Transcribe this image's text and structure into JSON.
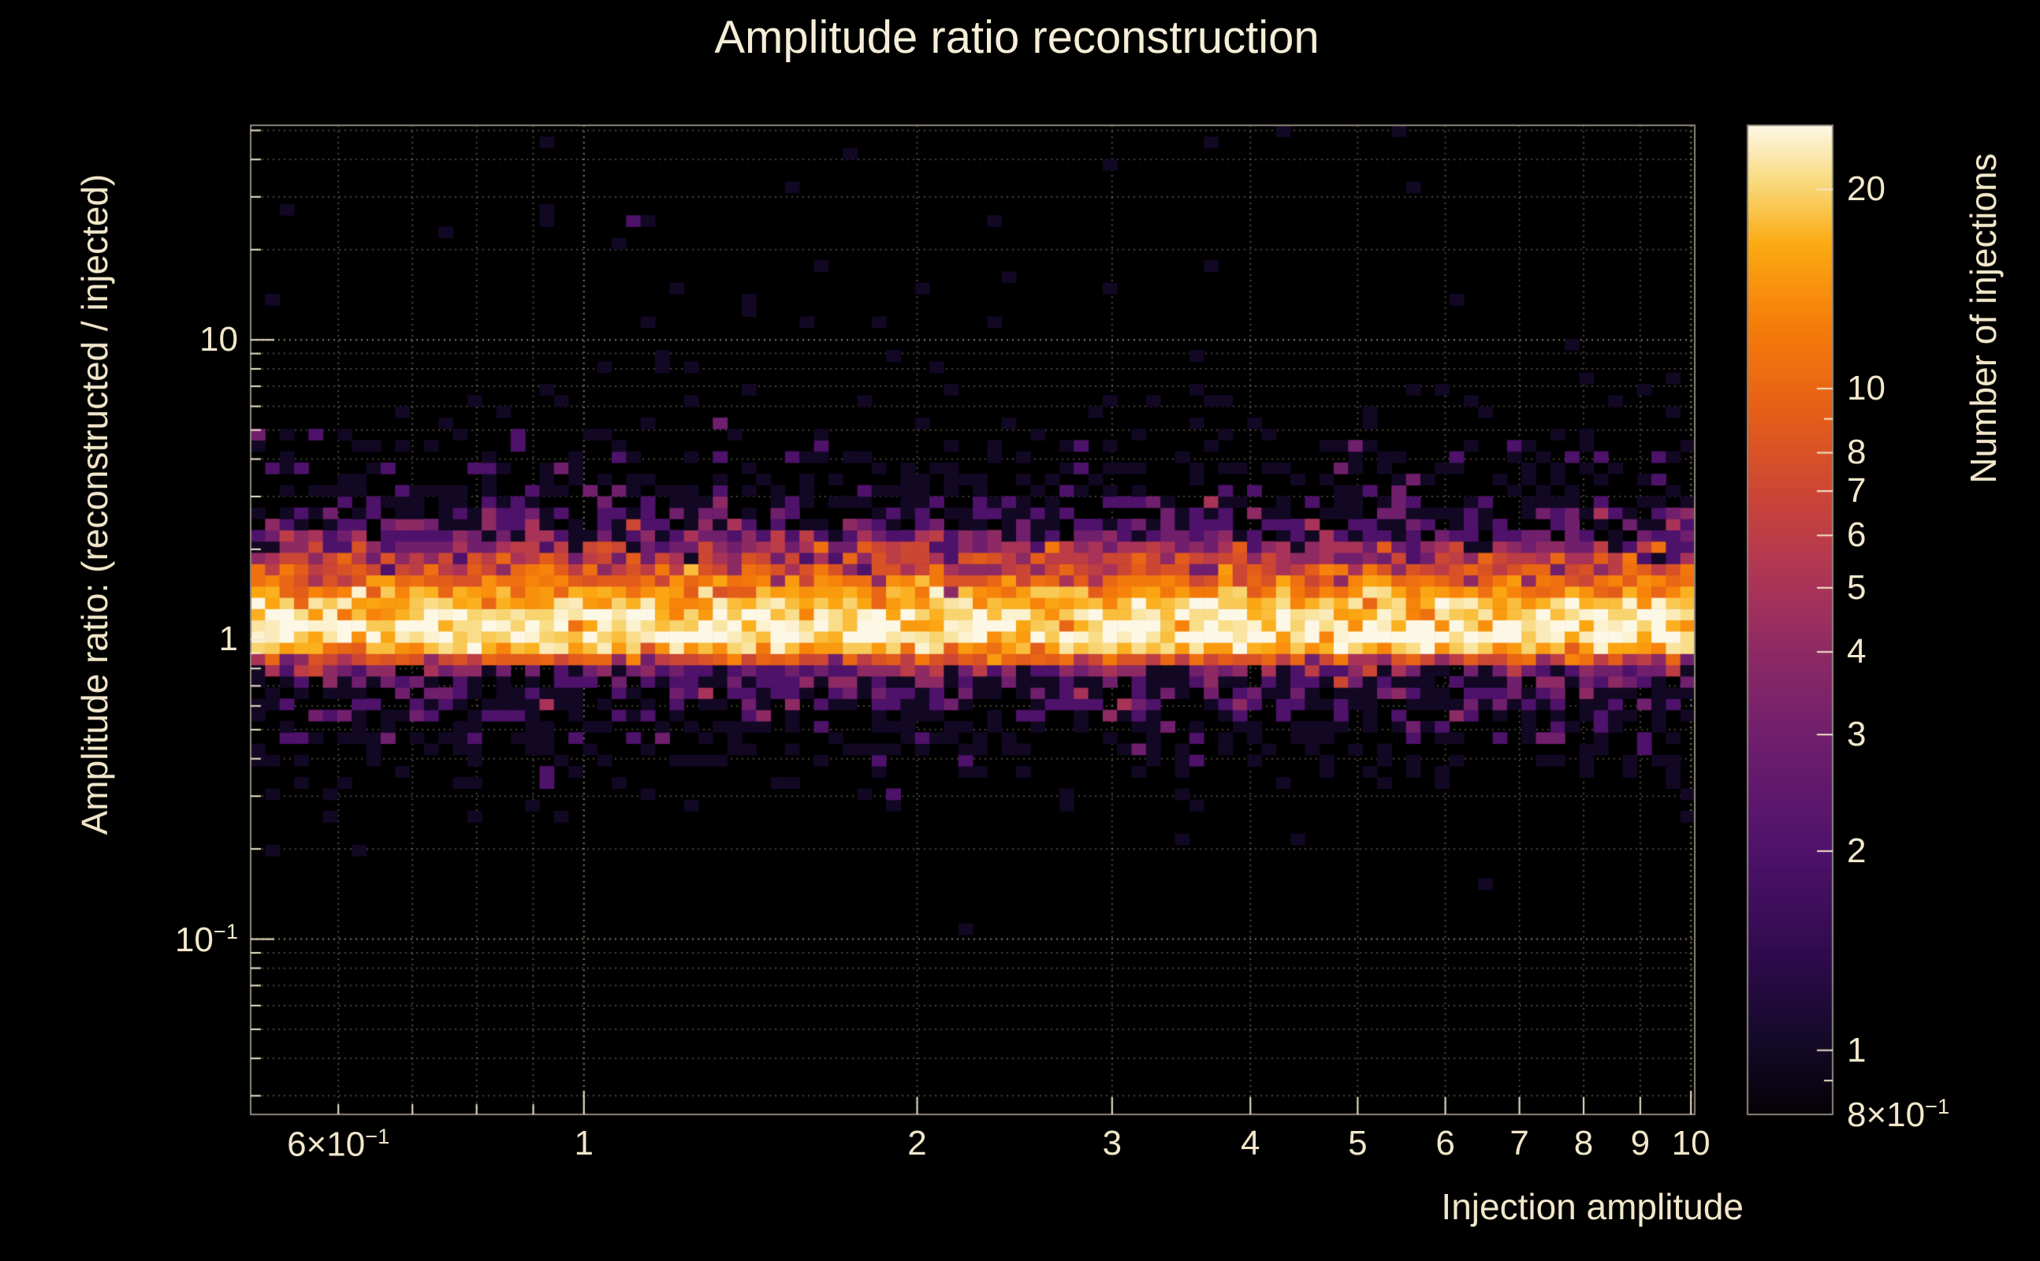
{
  "chart_data": {
    "type": "heatmap",
    "title": "Amplitude ratio reconstruction",
    "xlabel": "Injection amplitude",
    "ylabel": "Amplitude ratio: (reconstructed / injected)",
    "zlabel": "Number of injections",
    "x_scale": "log",
    "y_scale": "log",
    "z_scale": "log",
    "x_range": [
      0.5,
      10.08
    ],
    "y_range": [
      0.026,
      52
    ],
    "z_range": [
      0.8,
      25
    ],
    "nx": 100,
    "ny": 88,
    "seed": 13,
    "grid": true,
    "legend_position": "right-colorbar",
    "band_model": {
      "center_log10": 0.01,
      "core_amplitude": 21,
      "core_sigma_up": 0.145,
      "core_sigma_down": 0.048,
      "halo_amplitude": 2.0,
      "halo_center_log10": 0.03,
      "halo_sigma_up": 0.3,
      "halo_sigma_down": 0.22,
      "outlier_rate_above": 0.01,
      "outlier_rate_below": 0.004
    },
    "x_ticks": [
      {
        "v": 0.6,
        "label": "6×10",
        "sup": "−1"
      },
      {
        "v": 1,
        "label": "1"
      },
      {
        "v": 2,
        "label": "2"
      },
      {
        "v": 3,
        "label": "3"
      },
      {
        "v": 4,
        "label": "4"
      },
      {
        "v": 5,
        "label": "5"
      },
      {
        "v": 6,
        "label": "6"
      },
      {
        "v": 7,
        "label": "7"
      },
      {
        "v": 8,
        "label": "8"
      },
      {
        "v": 9,
        "label": "9"
      },
      {
        "v": 10,
        "label": "10"
      }
    ],
    "y_ticks": [
      {
        "v": 10,
        "label": "10"
      },
      {
        "v": 1,
        "label": "1"
      },
      {
        "v": 0.1,
        "label": "10",
        "sup": "−1"
      }
    ],
    "colorbar_ticks": [
      {
        "v": 20,
        "label": "20"
      },
      {
        "v": 10,
        "label": "10"
      },
      {
        "v": 8,
        "label": "8"
      },
      {
        "v": 7,
        "label": "7"
      },
      {
        "v": 6,
        "label": "6"
      },
      {
        "v": 5,
        "label": "5"
      },
      {
        "v": 4,
        "label": "4"
      },
      {
        "v": 3,
        "label": "3"
      },
      {
        "v": 2,
        "label": "2"
      },
      {
        "v": 1,
        "label": "1"
      },
      {
        "v": 0.8,
        "label": "8×10",
        "sup": "−1"
      }
    ],
    "palette": [
      [
        0.0,
        "#040106"
      ],
      [
        0.08,
        "#150a2b"
      ],
      [
        0.16,
        "#2f0a4d"
      ],
      [
        0.27,
        "#4f126b"
      ],
      [
        0.38,
        "#6f1e6d"
      ],
      [
        0.47,
        "#8e2a64"
      ],
      [
        0.55,
        "#b03655"
      ],
      [
        0.63,
        "#cc4634"
      ],
      [
        0.71,
        "#e55e17"
      ],
      [
        0.8,
        "#f67d0a"
      ],
      [
        0.88,
        "#fbaa12"
      ],
      [
        0.94,
        "#f8d878"
      ],
      [
        1.0,
        "#fdf8e6"
      ]
    ],
    "colors": {
      "background": "#000000",
      "text": "#f2e7cb",
      "title": "#f6eed8",
      "frame": "#8e877a",
      "grid": "#efe4c4"
    }
  }
}
